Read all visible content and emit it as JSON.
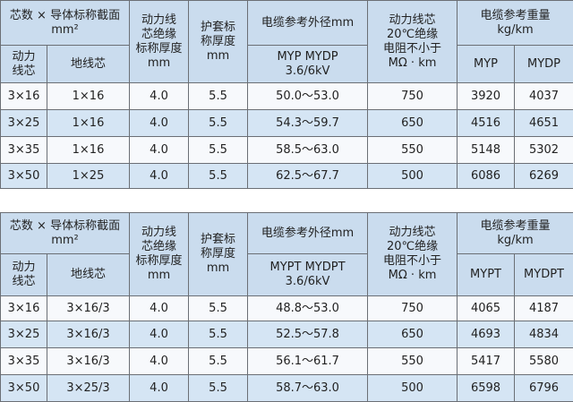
{
  "tables": [
    {
      "header": {
        "size_title": "芯数 × 导体标称截面",
        "size_unit": "mm²",
        "power_core": "动力\n线芯",
        "ground_core": "地线芯",
        "insulation": "动力线\n芯绝缘\n标称厚度",
        "insulation_unit": "mm",
        "sheath": "护套标\n称厚度",
        "sheath_unit": "mm",
        "diameter_title": "电缆参考外径mm",
        "diameter_models": "MYP   MYDP",
        "diameter_voltage": "3.6/6kV",
        "resistance": "动力线芯\n20℃绝缘\n电阻不小于",
        "resistance_unit": "MΩ · km",
        "weight_title": "电缆参考重量",
        "weight_unit": "kg/km",
        "weight_cols": [
          "MYP",
          "MYDP"
        ]
      },
      "rows": [
        [
          "3×16",
          "1×16",
          "4.0",
          "5.5",
          "50.0～53.0",
          "750",
          "3920",
          "4037"
        ],
        [
          "3×25",
          "1×16",
          "4.0",
          "5.5",
          "54.3～59.7",
          "650",
          "4516",
          "4651"
        ],
        [
          "3×35",
          "1×16",
          "4.0",
          "5.5",
          "58.5～63.0",
          "550",
          "5148",
          "5302"
        ],
        [
          "3×50",
          "1×25",
          "4.0",
          "5.5",
          "62.5～67.7",
          "500",
          "6086",
          "6269"
        ]
      ]
    },
    {
      "header": {
        "size_title": "芯数 × 导体标称截面",
        "size_unit": "mm²",
        "power_core": "动力\n线芯",
        "ground_core": "地线芯",
        "insulation": "动力线\n芯绝缘\n标称厚度",
        "insulation_unit": "mm",
        "sheath": "护套标\n称厚度",
        "sheath_unit": "mm",
        "diameter_title": "电缆参考外径mm",
        "diameter_models": "MYPT   MYDPT",
        "diameter_voltage": "3.6/6kV",
        "resistance": "动力线芯\n20℃绝缘\n电阻不小于",
        "resistance_unit": "MΩ · km",
        "weight_title": "电缆参考重量",
        "weight_unit": "kg/km",
        "weight_cols": [
          "MYPT",
          "MYDPT"
        ]
      },
      "rows": [
        [
          "3×16",
          "3×16/3",
          "4.0",
          "5.5",
          "48.8～53.0",
          "750",
          "4065",
          "4187"
        ],
        [
          "3×25",
          "3×16/3",
          "4.0",
          "5.5",
          "52.5～57.8",
          "650",
          "4693",
          "4834"
        ],
        [
          "3×35",
          "3×16/3",
          "4.0",
          "5.5",
          "56.1～61.7",
          "550",
          "5417",
          "5580"
        ],
        [
          "3×50",
          "3×25/3",
          "4.0",
          "5.5",
          "58.7～63.0",
          "500",
          "6598",
          "6796"
        ]
      ]
    }
  ]
}
